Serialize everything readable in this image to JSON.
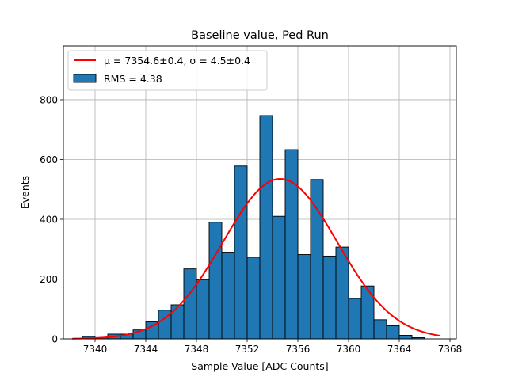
{
  "chart_data": {
    "type": "bar",
    "title": "Baseline value, Ped Run",
    "xlabel": "Sample Value [ADC Counts]",
    "ylabel": "Events",
    "xlim": [
      7337.5,
      7368.5
    ],
    "ylim": [
      0,
      980
    ],
    "grid": true,
    "legend_position": "top-left",
    "xticks": [
      7340,
      7344,
      7348,
      7352,
      7356,
      7360,
      7364,
      7368
    ],
    "yticks": [
      0,
      200,
      400,
      600,
      800
    ],
    "bin_width": 1,
    "bins": [
      {
        "x": 7339.5,
        "count": 8
      },
      {
        "x": 7340.5,
        "count": 4
      },
      {
        "x": 7341.5,
        "count": 16
      },
      {
        "x": 7342.5,
        "count": 16
      },
      {
        "x": 7343.5,
        "count": 30
      },
      {
        "x": 7344.5,
        "count": 57
      },
      {
        "x": 7345.5,
        "count": 96
      },
      {
        "x": 7346.5,
        "count": 114
      },
      {
        "x": 7347.5,
        "count": 234
      },
      {
        "x": 7348.5,
        "count": 198
      },
      {
        "x": 7349.5,
        "count": 390
      },
      {
        "x": 7350.5,
        "count": 290
      },
      {
        "x": 7351.5,
        "count": 578
      },
      {
        "x": 7352.5,
        "count": 273
      },
      {
        "x": 7353.5,
        "count": 747
      },
      {
        "x": 7354.5,
        "count": 410
      },
      {
        "x": 7355.5,
        "count": 633
      },
      {
        "x": 7356.5,
        "count": 282
      },
      {
        "x": 7357.5,
        "count": 533
      },
      {
        "x": 7358.5,
        "count": 277
      },
      {
        "x": 7359.5,
        "count": 307
      },
      {
        "x": 7360.5,
        "count": 135
      },
      {
        "x": 7361.5,
        "count": 177
      },
      {
        "x": 7362.5,
        "count": 64
      },
      {
        "x": 7363.5,
        "count": 44
      },
      {
        "x": 7364.5,
        "count": 12
      },
      {
        "x": 7365.5,
        "count": 4
      }
    ],
    "fit": {
      "mu": 7354.6,
      "sigma": 4.5,
      "amplitude": 535,
      "x_range": [
        7338.2,
        7367.2
      ]
    },
    "legend": [
      {
        "label": "μ = 7354.6±0.4, σ = 4.5±0.4",
        "kind": "line",
        "color": "#ff0000"
      },
      {
        "label": "RMS = 4.38",
        "kind": "patch",
        "color": "#1f77b4"
      }
    ],
    "colors": {
      "bar_fill": "#1f77b4",
      "bar_edge": "#000000",
      "fit_line": "#ff0000",
      "grid": "#b0b0b0"
    }
  }
}
